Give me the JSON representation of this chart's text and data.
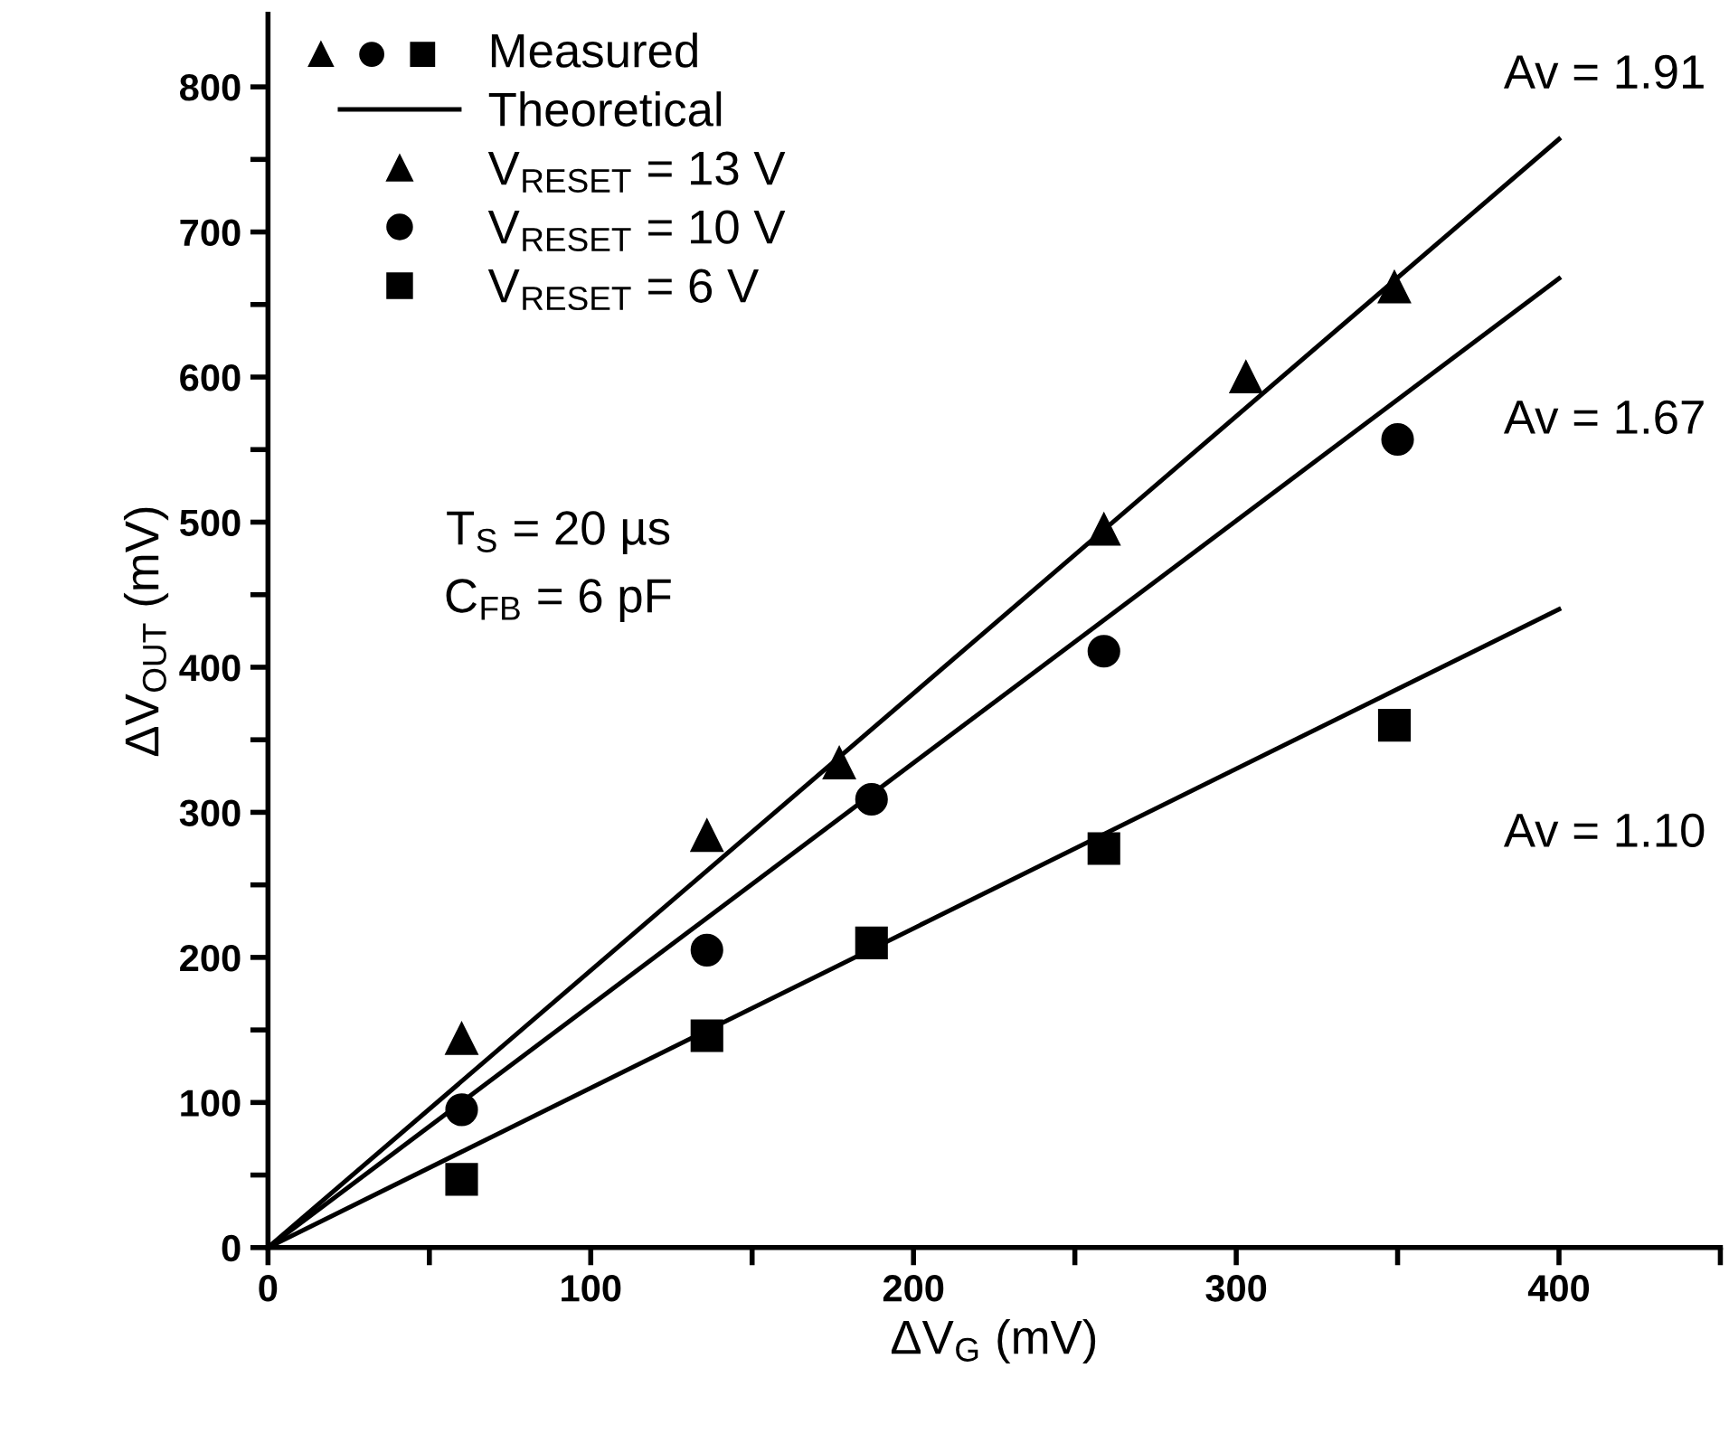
{
  "chart_data": {
    "type": "scatter",
    "xlabel": "ΔV$_{G}$ (mV)",
    "ylabel": "ΔV$_{OUT}$ (mV)",
    "legend_title": "Measured",
    "legend": "top left",
    "grid": false,
    "xlim": [
      0,
      450
    ],
    "ylim": [
      0,
      850
    ],
    "xticks": [
      0,
      {
        "value": 50,
        "label": null
      },
      100,
      {
        "value": 150,
        "label": null
      },
      200,
      {
        "value": 250,
        "label": null
      },
      300,
      {
        "value": 350,
        "label": null
      },
      400,
      {
        "value": 450,
        "label": null
      }
    ],
    "yticks": [
      0,
      {
        "value": 50,
        "label": null
      },
      100,
      {
        "value": 150,
        "label": null
      },
      200,
      {
        "value": 250,
        "label": null
      },
      300,
      {
        "value": 350,
        "label": null
      },
      400,
      {
        "value": 450,
        "label": null
      },
      500,
      {
        "value": 550,
        "label": null
      },
      600,
      {
        "value": 650,
        "label": null
      },
      700,
      {
        "value": 750,
        "label": null
      },
      800
    ],
    "series": [
      {
        "name": "Theoretical",
        "type": "line",
        "color": "#000000",
        "marker": "none",
        "x": [
          0,
          400
        ],
        "values": [
          0,
          764
        ]
      },
      {
        "type": "line",
        "color": "#000000",
        "marker": "none",
        "x": [
          0,
          400
        ],
        "values": [
          0,
          668
        ]
      },
      {
        "type": "line",
        "color": "#000000",
        "marker": "none",
        "x": [
          0,
          400
        ],
        "values": [
          0,
          440
        ]
      },
      {
        "name": "V$_{RESET}$ = 13 V",
        "color": "#000000",
        "marker": "triangle",
        "x": [
          60,
          136,
          177,
          259,
          303,
          349
        ],
        "values": [
          144,
          284,
          334,
          495,
          600,
          662
        ]
      },
      {
        "name": "V$_{RESET}$ = 10 V",
        "color": "#000000",
        "marker": "circle",
        "x": [
          60,
          136,
          187,
          259,
          350
        ],
        "values": [
          95,
          205,
          309,
          411,
          557
        ]
      },
      {
        "name": "V$_{RESET}$ = 6 V",
        "color": "#000000",
        "marker": "square",
        "x": [
          60,
          136,
          187,
          259,
          349
        ],
        "values": [
          47,
          146,
          210,
          275,
          360
        ]
      }
    ],
    "annotations": [
      "Av = 1.91",
      "Av = 1.67",
      "Av = 1.10",
      "T$_{S}$ = 20 µs",
      "C$_{FB}$ = 6 pF"
    ]
  }
}
